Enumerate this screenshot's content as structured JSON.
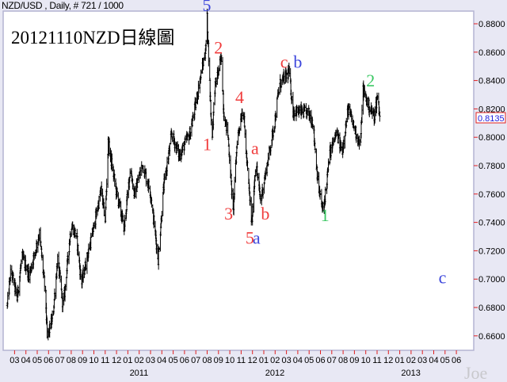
{
  "header": {
    "text": "NZD/USD , Daily, # 721 / 1000"
  },
  "chart_data": {
    "type": "ohlc",
    "title": "20121110NZD日線圖",
    "symbol": "NZD/USD",
    "interval": "Daily",
    "ylim": [
      0.65,
      0.895
    ],
    "yticks": [
      "0.8800",
      "0.8600",
      "0.8400",
      "0.8200",
      "0.8000",
      "0.7800",
      "0.7600",
      "0.7400",
      "0.7200",
      "0.7000",
      "0.6800",
      "0.6600"
    ],
    "last_price": "0.8135",
    "x_month_labels": [
      "03",
      "04",
      "05",
      "06",
      "07",
      "08",
      "09",
      "10",
      "11",
      "12",
      "01",
      "02",
      "03",
      "04",
      "05",
      "06",
      "07",
      "08",
      "09",
      "10",
      "11",
      "12",
      "01",
      "02",
      "03",
      "04",
      "05",
      "06",
      "07",
      "08",
      "09",
      "10",
      "11",
      "12",
      "01",
      "02",
      "03",
      "04",
      "05",
      "06"
    ],
    "x_start_month": "2010-03",
    "year_labels": [
      {
        "year": "2011",
        "month": "2011-01"
      },
      {
        "year": "2012",
        "month": "2012-01"
      },
      {
        "year": "2013",
        "month": "2013-01"
      }
    ],
    "grid": false,
    "closes_approx": [
      [
        "2010-02-11",
        0.6815
      ],
      [
        "2010-02-20",
        0.7067
      ],
      [
        "2010-03-08",
        0.686
      ],
      [
        "2010-03-21",
        0.716
      ],
      [
        "2010-04-10",
        0.703
      ],
      [
        "2010-05-07",
        0.732
      ],
      [
        "2010-05-24",
        0.688
      ],
      [
        "2010-05-28",
        0.658
      ],
      [
        "2010-06-12",
        0.673
      ],
      [
        "2010-06-25",
        0.714
      ],
      [
        "2010-07-10",
        0.68
      ],
      [
        "2010-08-01",
        0.739
      ],
      [
        "2010-08-16",
        0.729
      ],
      [
        "2010-08-29",
        0.697
      ],
      [
        "2010-09-28",
        0.733
      ],
      [
        "2010-10-21",
        0.763
      ],
      [
        "2010-11-01",
        0.742
      ],
      [
        "2010-11-09",
        0.796
      ],
      [
        "2010-12-01",
        0.761
      ],
      [
        "2010-12-22",
        0.736
      ],
      [
        "2011-01-08",
        0.779
      ],
      [
        "2011-01-19",
        0.759
      ],
      [
        "2011-02-09",
        0.781
      ],
      [
        "2011-03-01",
        0.761
      ],
      [
        "2011-03-22",
        0.714
      ],
      [
        "2011-04-06",
        0.765
      ],
      [
        "2011-04-27",
        0.802
      ],
      [
        "2011-05-18",
        0.787
      ],
      [
        "2011-06-16",
        0.803
      ],
      [
        "2011-07-28",
        0.862
      ],
      [
        "2011-08-01",
        0.884
      ],
      [
        "2011-08-14",
        0.798
      ],
      [
        "2011-08-22",
        0.835
      ],
      [
        "2011-09-09",
        0.856
      ],
      [
        "2011-09-15",
        0.817
      ],
      [
        "2011-09-26",
        0.802
      ],
      [
        "2011-10-10",
        0.747
      ],
      [
        "2011-10-21",
        0.798
      ],
      [
        "2011-11-06",
        0.822
      ],
      [
        "2011-11-16",
        0.783
      ],
      [
        "2011-11-29",
        0.739
      ],
      [
        "2011-12-10",
        0.783
      ],
      [
        "2011-12-23",
        0.755
      ],
      [
        "2012-01-09",
        0.779
      ],
      [
        "2012-01-31",
        0.811
      ],
      [
        "2012-02-12",
        0.837
      ],
      [
        "2012-03-08",
        0.846
      ],
      [
        "2012-03-19",
        0.8185
      ],
      [
        "2012-04-30",
        0.817
      ],
      [
        "2012-05-11",
        0.811
      ],
      [
        "2012-05-26",
        0.766
      ],
      [
        "2012-06-08",
        0.747
      ],
      [
        "2012-06-27",
        0.79
      ],
      [
        "2012-07-14",
        0.803
      ],
      [
        "2012-07-29",
        0.79
      ],
      [
        "2012-08-15",
        0.82
      ],
      [
        "2012-08-31",
        0.807
      ],
      [
        "2012-09-17",
        0.794
      ],
      [
        "2012-09-23",
        0.834
      ],
      [
        "2012-10-12",
        0.82
      ],
      [
        "2012-10-25",
        0.815
      ],
      [
        "2012-11-02",
        0.83
      ],
      [
        "2012-11-09",
        0.8135
      ]
    ],
    "annotations": [
      {
        "text": "5",
        "color": "#3c46dc",
        "date": "2011-07-31",
        "price": 0.889
      },
      {
        "text": "2",
        "color": "#f03c3c",
        "date": "2011-09-01",
        "price": 0.859
      },
      {
        "text": "1",
        "color": "#f03c3c",
        "date": "2011-08-01",
        "price": 0.791
      },
      {
        "text": "3",
        "color": "#f03c3c",
        "date": "2011-09-28",
        "price": 0.742
      },
      {
        "text": "4",
        "color": "#f03c3c",
        "date": "2011-10-28",
        "price": 0.824
      },
      {
        "text": "a",
        "color": "#f03c3c",
        "date": "2011-12-08",
        "price": 0.788
      },
      {
        "text": "b",
        "color": "#f03c3c",
        "date": "2012-01-05",
        "price": 0.742
      },
      {
        "text": "5",
        "color": "#f03c3c",
        "date": "2011-11-24",
        "price": 0.725
      },
      {
        "text": "a",
        "color": "#3c46dc",
        "date": "2011-12-12",
        "price": 0.725
      },
      {
        "text": "c",
        "color": "#f03c3c",
        "date": "2012-02-24",
        "price": 0.849
      },
      {
        "text": "b",
        "color": "#3c46dc",
        "date": "2012-04-01",
        "price": 0.849
      },
      {
        "text": "1",
        "color": "#3cc864",
        "date": "2012-06-13",
        "price": 0.741
      },
      {
        "text": "2",
        "color": "#3cc864",
        "date": "2012-10-14",
        "price": 0.836
      },
      {
        "text": "c",
        "color": "#3c46dc",
        "date": "2013-04-24",
        "price": 0.697
      }
    ],
    "watermark": "Joe"
  }
}
